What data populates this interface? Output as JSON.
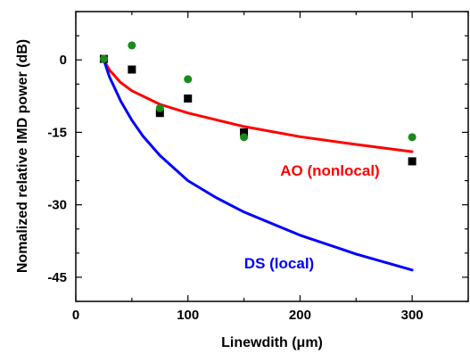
{
  "chart_data": {
    "type": "scatter",
    "xlabel": "Linewdith (μm)",
    "ylabel": "Nomalized relative IMD power (dB)",
    "xlim": [
      0,
      350
    ],
    "ylim": [
      -50,
      10
    ],
    "xticks": [
      0,
      100,
      200,
      300
    ],
    "yticks": [
      0,
      -15,
      -30,
      -45
    ],
    "x_tick_labels": [
      "0",
      "100",
      "200",
      "300"
    ],
    "y_tick_labels": [
      "0",
      "-15",
      "-30",
      "-45"
    ],
    "grid": false,
    "series": [
      {
        "name": "AO (nonlocal)",
        "kind": "line",
        "color": "#ff0000",
        "x": [
          25,
          30,
          40,
          50,
          75,
          100,
          125,
          150,
          200,
          250,
          300
        ],
        "y": [
          0,
          -2.1,
          -4.7,
          -6.4,
          -9.2,
          -11.0,
          -12.4,
          -13.8,
          -15.9,
          -17.5,
          -19.0
        ]
      },
      {
        "name": "DS (local)",
        "kind": "line",
        "color": "#0000ff",
        "x": [
          25,
          30,
          40,
          50,
          60,
          75,
          100,
          125,
          150,
          200,
          250,
          300
        ],
        "y": [
          0,
          -3.5,
          -8.5,
          -12.5,
          -15.8,
          -19.8,
          -25.0,
          -28.5,
          -31.5,
          -36.3,
          -40.2,
          -43.5
        ]
      },
      {
        "kind": "markers",
        "marker": "square",
        "color": "#000000",
        "x": [
          25,
          50,
          75,
          100,
          150,
          300
        ],
        "y": [
          0.2,
          -2,
          -11,
          -8,
          -15,
          -21
        ]
      },
      {
        "kind": "markers",
        "marker": "circle",
        "color": "#1a8a1a",
        "x": [
          25,
          50,
          75,
          100,
          150,
          300
        ],
        "y": [
          0.2,
          3,
          -10,
          -4,
          -16,
          -16
        ]
      }
    ],
    "annotations": [
      {
        "text": "AO (nonlocal)",
        "color": "#ff0000"
      },
      {
        "text": "DS (local)",
        "color": "#0000ff"
      }
    ]
  }
}
